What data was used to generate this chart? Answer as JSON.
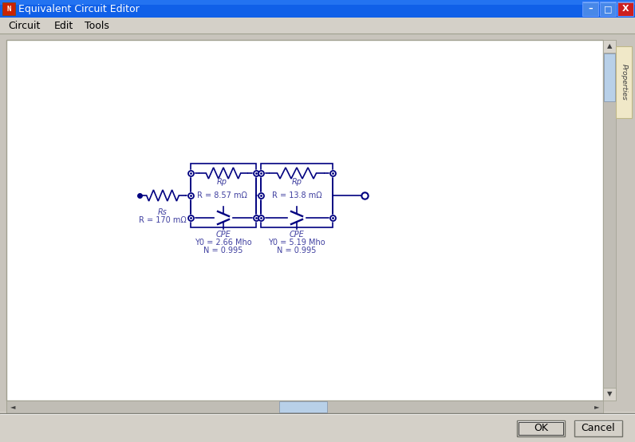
{
  "title": "Equivalent Circuit Editor",
  "menu_items": [
    "Circuit",
    "Edit",
    "Tools"
  ],
  "title_bar_color": "#1060e8",
  "title_bar_text_color": "#ffffff",
  "menu_bar_bg": "#d4d0c8",
  "window_bg": "#d4d0c8",
  "canvas_bg": "#ffffff",
  "circuit_color": "#000080",
  "circuit_text_color": "#4040a0",
  "button_labels": [
    "OK",
    "Cancel"
  ],
  "properties_tab": "Properties",
  "rs_label": "Rs",
  "rs_value": "R = 170 mΩ",
  "rp1_label": "Rp",
  "rp1_value": "R = 8.57 mΩ",
  "cpe1_label": "CPE",
  "cpe1_y0": "Y0 = 2.66 Mho",
  "cpe1_n": "N = 0.995",
  "rp2_label": "Rp",
  "rp2_value": "R = 13.8 mΩ",
  "cpe2_label": "CPE",
  "cpe2_y0": "Y0 = 5.19 Mho",
  "cpe2_n": "N = 0.995"
}
